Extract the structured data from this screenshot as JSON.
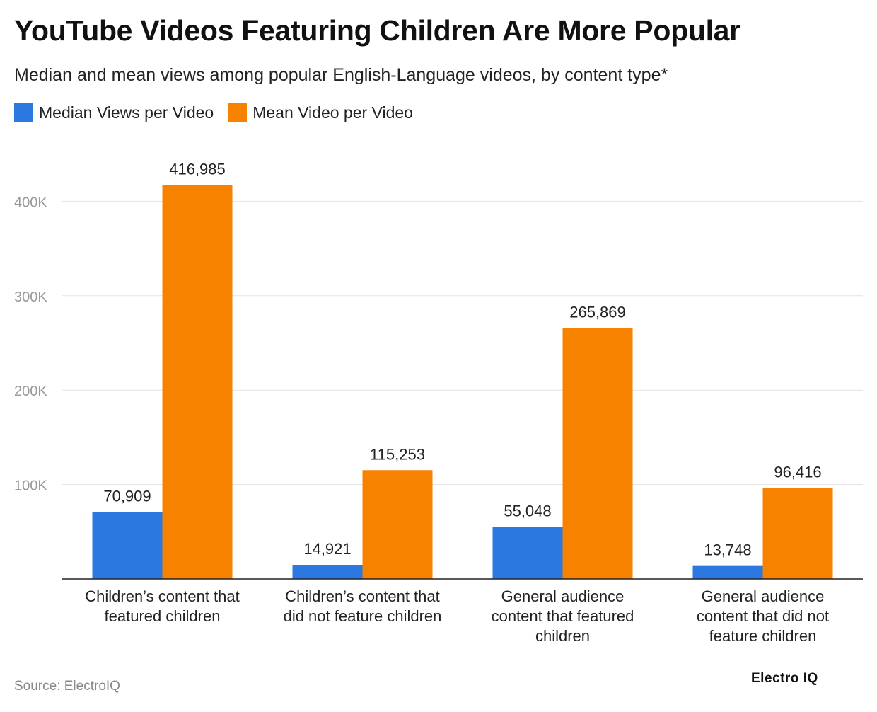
{
  "title": "YouTube Videos Featuring Children Are More Popular",
  "subtitle": "Median and mean views among popular English-Language videos, by content type*",
  "source": "Source: ElectroIQ",
  "logo": "Electro IQ",
  "chart_data": {
    "type": "bar",
    "categories": [
      [
        "Children’s content that",
        "featured children"
      ],
      [
        "Children’s content that",
        "did not feature children"
      ],
      [
        "General audience",
        "content that featured",
        "children"
      ],
      [
        "General audience",
        "content that did not",
        "feature children"
      ]
    ],
    "series": [
      {
        "name": "Median Views per Video",
        "color": "#2b78e0",
        "values": [
          70909,
          14921,
          55048,
          13748
        ],
        "labels": [
          "70,909",
          "14,921",
          "55,048",
          "13,748"
        ]
      },
      {
        "name": "Mean Video per Video",
        "color": "#f78200",
        "values": [
          416985,
          115253,
          265869,
          96416
        ],
        "labels": [
          "416,985",
          "115,253",
          "265,869",
          "96,416"
        ]
      }
    ],
    "yticks": [
      100000,
      200000,
      300000,
      400000
    ],
    "ytick_labels": [
      "100K",
      "200K",
      "300K",
      "400K"
    ],
    "ylim": [
      0,
      430000
    ],
    "grid": true,
    "legend": "top-left"
  }
}
